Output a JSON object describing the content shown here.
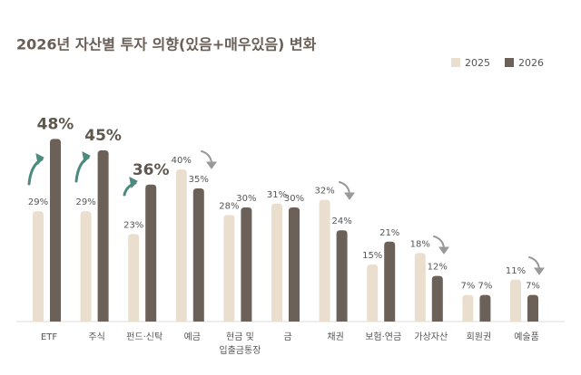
{
  "chart_data": {
    "type": "bar",
    "title": "2026년 자산별 투자 의향(있음+매우있음) 변화",
    "categories": [
      "ETF",
      "주식",
      "펀드·신탁",
      "예금",
      "현금 및 입출금통장",
      "금",
      "채권",
      "보험·연금",
      "가상자산",
      "회원권",
      "예술품"
    ],
    "series": [
      {
        "name": "2025",
        "color": "#eadfce",
        "values": [
          29,
          29,
          23,
          40,
          28,
          31,
          32,
          15,
          18,
          7,
          11
        ],
        "value_labels": [
          "29%",
          "29%",
          "23%",
          "40%",
          "28%",
          "31%",
          "32%",
          "15%",
          "18%",
          "7%",
          "11%"
        ]
      },
      {
        "name": "2026",
        "color": "#6b6158",
        "values": [
          48,
          45,
          36,
          35,
          30,
          30,
          24,
          21,
          12,
          7,
          7
        ],
        "value_labels": [
          "48%",
          "45%",
          "36%",
          "35%",
          "30%",
          "30%",
          "24%",
          "21%",
          "12%",
          "7%",
          "7%"
        ]
      }
    ]
  }
}
